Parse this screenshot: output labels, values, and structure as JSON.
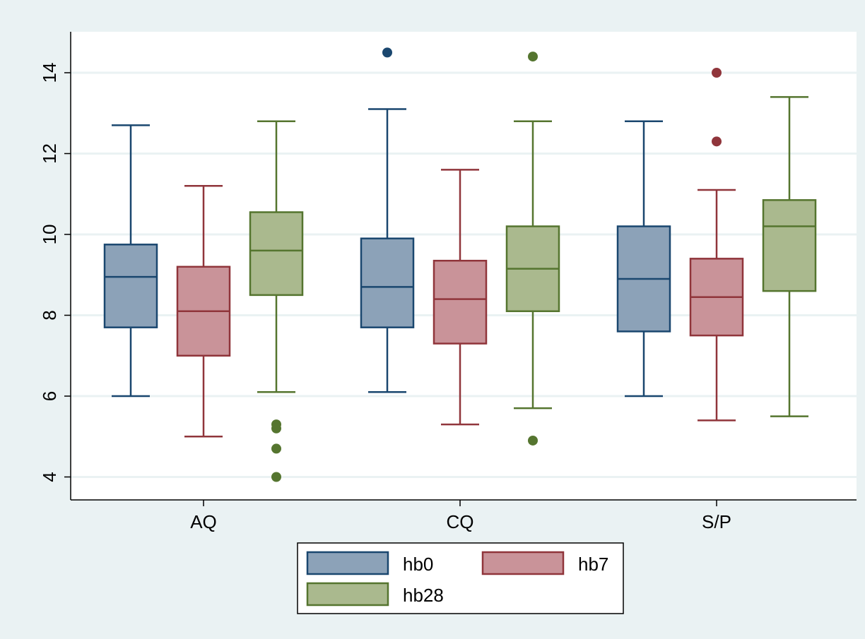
{
  "chart_data": {
    "type": "box",
    "categories": [
      "AQ",
      "CQ",
      "S/P"
    ],
    "ylim": [
      3.5,
      15.1
    ],
    "yticks": [
      4,
      6,
      8,
      10,
      12,
      14
    ],
    "ytick_labels": [
      "4",
      "6",
      "8",
      "10",
      "12",
      "14"
    ],
    "grid": true,
    "legend_position": "bottom",
    "series": [
      {
        "name": "hb0",
        "fill": "#8ca2b8",
        "stroke": "#1a476f",
        "boxes": [
          {
            "whisker_low": 6.0,
            "q1": 7.7,
            "median": 8.95,
            "q3": 9.75,
            "whisker_high": 12.7,
            "outliers": []
          },
          {
            "whisker_low": 6.1,
            "q1": 7.7,
            "median": 8.7,
            "q3": 9.9,
            "whisker_high": 13.1,
            "outliers": [
              14.5
            ]
          },
          {
            "whisker_low": 6.0,
            "q1": 7.6,
            "median": 8.9,
            "q3": 10.2,
            "whisker_high": 12.8,
            "outliers": []
          }
        ]
      },
      {
        "name": "hb7",
        "fill": "#c99399",
        "stroke": "#90353b",
        "boxes": [
          {
            "whisker_low": 5.0,
            "q1": 7.0,
            "median": 8.1,
            "q3": 9.2,
            "whisker_high": 11.2,
            "outliers": []
          },
          {
            "whisker_low": 5.3,
            "q1": 7.3,
            "median": 8.4,
            "q3": 9.35,
            "whisker_high": 11.6,
            "outliers": []
          },
          {
            "whisker_low": 5.4,
            "q1": 7.5,
            "median": 8.45,
            "q3": 9.4,
            "whisker_high": 11.1,
            "outliers": [
              12.3,
              14.0
            ]
          }
        ]
      },
      {
        "name": "hb28",
        "fill": "#aab98e",
        "stroke": "#55752f",
        "boxes": [
          {
            "whisker_low": 6.1,
            "q1": 8.5,
            "median": 9.6,
            "q3": 10.55,
            "whisker_high": 12.8,
            "outliers": [
              4.0,
              4.7,
              5.2,
              5.3
            ]
          },
          {
            "whisker_low": 5.7,
            "q1": 8.1,
            "median": 9.15,
            "q3": 10.2,
            "whisker_high": 12.8,
            "outliers": [
              4.9,
              14.4
            ]
          },
          {
            "whisker_low": 5.5,
            "q1": 8.6,
            "median": 10.2,
            "q3": 10.85,
            "whisker_high": 13.4,
            "outliers": []
          }
        ]
      }
    ]
  }
}
